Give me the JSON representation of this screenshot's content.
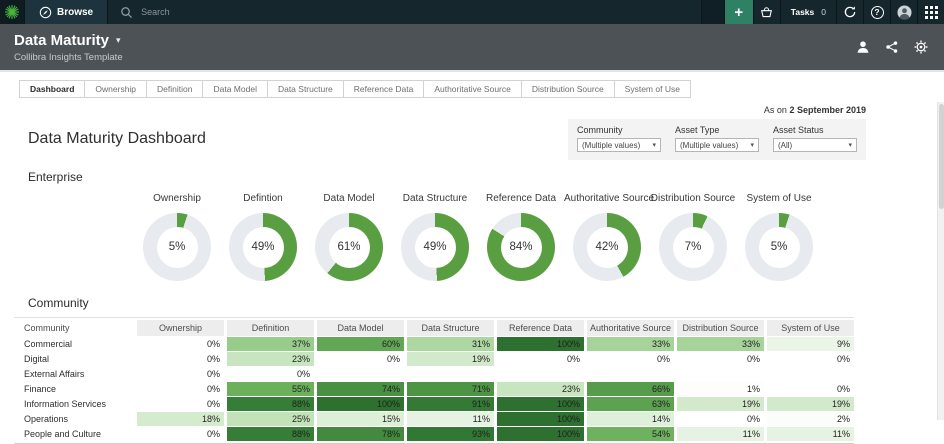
{
  "topnav": {
    "browse_label": "Browse",
    "search_placeholder": "Search",
    "tasks_label": "Tasks",
    "tasks_count": "0"
  },
  "header": {
    "title": "Data Maturity",
    "subtitle": "Collibra Insights Template"
  },
  "tabs": [
    {
      "label": "Dashboard",
      "active": true
    },
    {
      "label": "Ownership",
      "active": false
    },
    {
      "label": "Definition",
      "active": false
    },
    {
      "label": "Data Model",
      "active": false
    },
    {
      "label": "Data Structure",
      "active": false
    },
    {
      "label": "Reference Data",
      "active": false
    },
    {
      "label": "Authoritative Source",
      "active": false
    },
    {
      "label": "Distribution Source",
      "active": false
    },
    {
      "label": "System of Use",
      "active": false
    }
  ],
  "meta": {
    "as_on_prefix": "As on",
    "as_on_date": "2 September 2019"
  },
  "filters": [
    {
      "label": "Community",
      "value": "(Multiple values)"
    },
    {
      "label": "Asset Type",
      "value": "(Multiple values)"
    },
    {
      "label": "Asset Status",
      "value": "(All)"
    }
  ],
  "page": {
    "title": "Data Maturity Dashboard",
    "enterprise_heading": "Enterprise",
    "community_heading": "Community"
  },
  "icons": {
    "plus": "+",
    "caret-down": "▾",
    "help": "?"
  },
  "colors": {
    "accent_green": "#5a9e42",
    "donut_track": "#e7eaee",
    "nav_green": "#2f8166",
    "heat_stops": [
      [
        0,
        "#ffffff"
      ],
      [
        15,
        "#ddefd7"
      ],
      [
        25,
        "#c2e2b8"
      ],
      [
        40,
        "#8cc67e"
      ],
      [
        55,
        "#6cb05c"
      ],
      [
        70,
        "#4f9546"
      ],
      [
        85,
        "#38813a"
      ],
      [
        100,
        "#2d7030"
      ]
    ]
  },
  "chart_data": [
    {
      "type": "pie",
      "subtype": "donut-grid",
      "title": "Enterprise",
      "categories": [
        "Ownership",
        "Defintion",
        "Data Model",
        "Data Structure",
        "Reference Data",
        "Authoritative Source",
        "Distribution Source",
        "System of Use"
      ],
      "values": [
        5,
        49,
        61,
        49,
        84,
        42,
        7,
        5
      ],
      "unit": "%",
      "color": "#5a9e42",
      "track_color": "#e7eaee"
    },
    {
      "type": "heatmap",
      "title": "Community",
      "columns": [
        "Community",
        "Ownership",
        "Definition",
        "Data Model",
        "Data Structure",
        "Reference Data",
        "Authoritative Source",
        "Distribution Source",
        "System of Use"
      ],
      "rows": [
        {
          "name": "Commercial",
          "values": [
            0,
            37,
            60,
            31,
            100,
            33,
            33,
            9
          ]
        },
        {
          "name": "Digital",
          "values": [
            0,
            23,
            0,
            19,
            0,
            0,
            0,
            0
          ]
        },
        {
          "name": "External Affairs",
          "values": [
            0,
            0,
            null,
            null,
            null,
            null,
            null,
            null
          ]
        },
        {
          "name": "Finance",
          "values": [
            0,
            55,
            74,
            71,
            23,
            66,
            1,
            0
          ]
        },
        {
          "name": "Information Services",
          "values": [
            0,
            88,
            100,
            91,
            100,
            63,
            19,
            19
          ]
        },
        {
          "name": "Operations",
          "values": [
            18,
            25,
            15,
            11,
            100,
            14,
            0,
            2
          ]
        },
        {
          "name": "People and Culture",
          "values": [
            0,
            88,
            78,
            93,
            100,
            54,
            11,
            11
          ]
        }
      ],
      "unit": "%",
      "scale": "white (0%) to dark green (100%)"
    }
  ]
}
